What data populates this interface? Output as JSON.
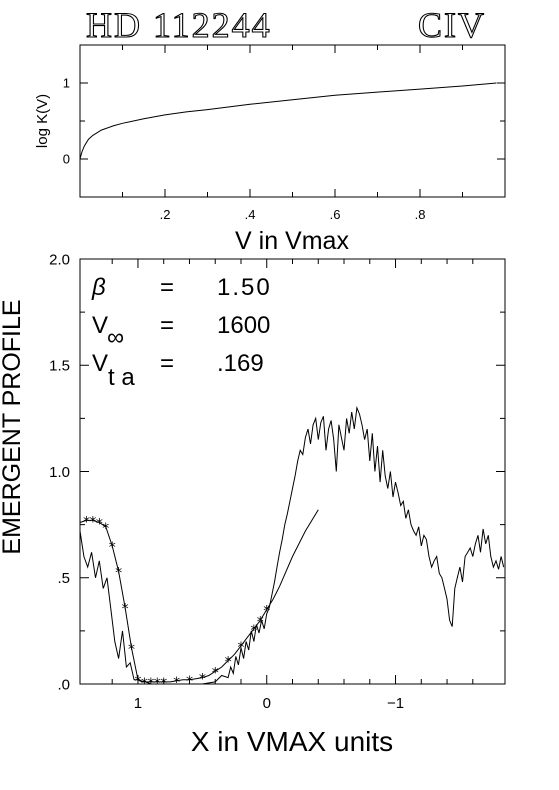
{
  "header": {
    "star": "HD 112244",
    "ion": "CIV"
  },
  "params": {
    "beta_symbol": "β",
    "beta_value": "1.50",
    "vinf_symbol": "V",
    "vinf_sub": "∞",
    "vinf_value": "1600",
    "vta_symbol": "V",
    "vta_sub": "t a",
    "vta_value": ".169",
    "equals": "="
  },
  "chart_data": [
    {
      "type": "line",
      "title": "",
      "xlabel": "V in Vmax",
      "ylabel": "log K(V)",
      "xlim": [
        0.0,
        1.0
      ],
      "ylim": [
        -0.5,
        1.5
      ],
      "x_ticks": [
        0.2,
        0.4,
        0.6,
        0.8
      ],
      "x_tick_labels": [
        ".2",
        ".4",
        ".6",
        ".8"
      ],
      "y_ticks": [
        0,
        1
      ],
      "y_tick_labels": [
        "0",
        "1"
      ],
      "grid": false,
      "series": [
        {
          "x": [
            0.0,
            0.005,
            0.01,
            0.02,
            0.03,
            0.05,
            0.08,
            0.1,
            0.15,
            0.2,
            0.25,
            0.3,
            0.4,
            0.5,
            0.6,
            0.7,
            0.8,
            0.9,
            0.98
          ],
          "y": [
            0.0,
            0.1,
            0.17,
            0.26,
            0.31,
            0.38,
            0.44,
            0.47,
            0.53,
            0.58,
            0.62,
            0.65,
            0.72,
            0.78,
            0.84,
            0.88,
            0.92,
            0.96,
            1.0
          ]
        }
      ]
    },
    {
      "type": "line",
      "title": "",
      "xlabel": "X in VMAX units",
      "ylabel": "EMERGENT PROFILE",
      "xlim": [
        1.45,
        -1.85
      ],
      "ylim": [
        0.0,
        2.0
      ],
      "x_ticks": [
        1,
        0,
        -1
      ],
      "x_tick_labels": [
        "1",
        "0",
        "−1"
      ],
      "y_ticks": [
        0.0,
        0.5,
        1.0,
        1.5,
        2.0
      ],
      "y_tick_labels": [
        ".0",
        ".5",
        "1.0",
        "1.5",
        "2.0"
      ],
      "grid": false,
      "series": [
        {
          "style": "observed",
          "x": [
            1.45,
            1.42,
            1.39,
            1.36,
            1.33,
            1.3,
            1.27,
            1.24,
            1.21,
            1.18,
            1.15,
            1.12,
            1.09,
            1.06,
            1.03,
            1.0,
            0.97,
            0.94,
            0.9,
            0.8,
            0.7,
            0.6,
            0.5,
            0.4,
            0.35,
            0.3,
            0.28,
            0.26,
            0.24,
            0.22,
            0.2,
            0.18,
            0.16,
            0.14,
            0.12,
            0.1,
            0.08,
            0.06,
            0.04,
            0.02,
            0.0,
            -0.02,
            -0.04,
            -0.06,
            -0.08,
            -0.1,
            -0.12,
            -0.14,
            -0.16,
            -0.18,
            -0.2,
            -0.22,
            -0.24,
            -0.26,
            -0.28,
            -0.3,
            -0.32,
            -0.34,
            -0.36,
            -0.38,
            -0.4,
            -0.42,
            -0.44,
            -0.46,
            -0.48,
            -0.5,
            -0.52,
            -0.54,
            -0.56,
            -0.58,
            -0.6,
            -0.62,
            -0.64,
            -0.66,
            -0.68,
            -0.7,
            -0.72,
            -0.74,
            -0.76,
            -0.78,
            -0.8,
            -0.82,
            -0.84,
            -0.86,
            -0.88,
            -0.9,
            -0.92,
            -0.94,
            -0.96,
            -0.98,
            -1.0,
            -1.02,
            -1.04,
            -1.06,
            -1.08,
            -1.1,
            -1.12,
            -1.14,
            -1.16,
            -1.18,
            -1.2,
            -1.22,
            -1.24,
            -1.26,
            -1.28,
            -1.3,
            -1.32,
            -1.34,
            -1.36,
            -1.38,
            -1.4,
            -1.42,
            -1.44,
            -1.46,
            -1.48,
            -1.5,
            -1.52,
            -1.54,
            -1.56,
            -1.58,
            -1.6,
            -1.62,
            -1.64,
            -1.66,
            -1.68,
            -1.7,
            -1.72,
            -1.74,
            -1.76,
            -1.78,
            -1.8,
            -1.82,
            -1.84
          ],
          "y": [
            0.72,
            0.6,
            0.55,
            0.62,
            0.5,
            0.58,
            0.45,
            0.5,
            0.35,
            0.2,
            0.12,
            0.25,
            0.08,
            0.1,
            0.02,
            0.02,
            0.01,
            0.01,
            0.0,
            0.0,
            0.0,
            0.0,
            0.0,
            0.01,
            0.04,
            0.03,
            0.08,
            0.05,
            0.13,
            0.09,
            0.17,
            0.12,
            0.2,
            0.16,
            0.25,
            0.2,
            0.28,
            0.24,
            0.3,
            0.26,
            0.33,
            0.36,
            0.42,
            0.48,
            0.55,
            0.62,
            0.68,
            0.75,
            0.8,
            0.86,
            0.92,
            0.98,
            1.05,
            1.1,
            1.08,
            1.16,
            1.2,
            1.13,
            1.22,
            1.25,
            1.15,
            1.23,
            1.26,
            1.1,
            1.2,
            1.24,
            1.15,
            1.0,
            1.22,
            1.16,
            1.1,
            1.25,
            1.18,
            1.28,
            1.2,
            1.3,
            1.27,
            1.22,
            1.15,
            1.2,
            1.05,
            1.18,
            1.0,
            1.12,
            0.95,
            1.1,
            0.98,
            0.92,
            1.0,
            0.88,
            0.95,
            0.9,
            0.84,
            0.86,
            0.78,
            0.82,
            0.75,
            0.72,
            0.7,
            0.74,
            0.65,
            0.7,
            0.68,
            0.6,
            0.55,
            0.58,
            0.6,
            0.52,
            0.5,
            0.45,
            0.4,
            0.3,
            0.27,
            0.45,
            0.5,
            0.55,
            0.48,
            0.6,
            0.62,
            0.64,
            0.6,
            0.66,
            0.7,
            0.62,
            0.73,
            0.66,
            0.7,
            0.6,
            0.55,
            0.58,
            0.54,
            0.6,
            0.55
          ]
        },
        {
          "style": "model",
          "x": [
            1.45,
            1.4,
            1.35,
            1.3,
            1.25,
            1.2,
            1.15,
            1.1,
            1.05,
            1.0,
            0.95,
            0.9,
            0.85,
            0.8,
            0.75,
            0.7,
            0.65,
            0.6,
            0.55,
            0.5,
            0.45,
            0.4,
            0.35,
            0.3,
            0.25,
            0.2,
            0.15,
            0.1,
            0.05,
            0.0,
            -0.05,
            -0.1,
            -0.2,
            -0.3,
            -0.4
          ],
          "y": [
            0.76,
            0.77,
            0.77,
            0.76,
            0.74,
            0.65,
            0.53,
            0.36,
            0.17,
            0.02,
            0.01,
            0.01,
            0.01,
            0.01,
            0.01,
            0.015,
            0.02,
            0.02,
            0.025,
            0.03,
            0.04,
            0.06,
            0.08,
            0.11,
            0.14,
            0.18,
            0.22,
            0.26,
            0.3,
            0.35,
            0.4,
            0.46,
            0.6,
            0.72,
            0.82
          ]
        },
        {
          "style": "markers",
          "x": [
            1.4,
            1.35,
            1.3,
            1.25,
            1.2,
            1.15,
            1.1,
            1.05,
            1.0,
            0.95,
            0.9,
            0.85,
            0.8,
            0.7,
            0.6,
            0.5,
            0.4,
            0.3,
            0.2,
            0.1,
            0.05,
            0.0
          ],
          "y": [
            0.77,
            0.77,
            0.76,
            0.74,
            0.65,
            0.53,
            0.36,
            0.17,
            0.02,
            0.01,
            0.01,
            0.01,
            0.01,
            0.015,
            0.02,
            0.03,
            0.06,
            0.11,
            0.18,
            0.26,
            0.3,
            0.35
          ]
        }
      ]
    }
  ]
}
